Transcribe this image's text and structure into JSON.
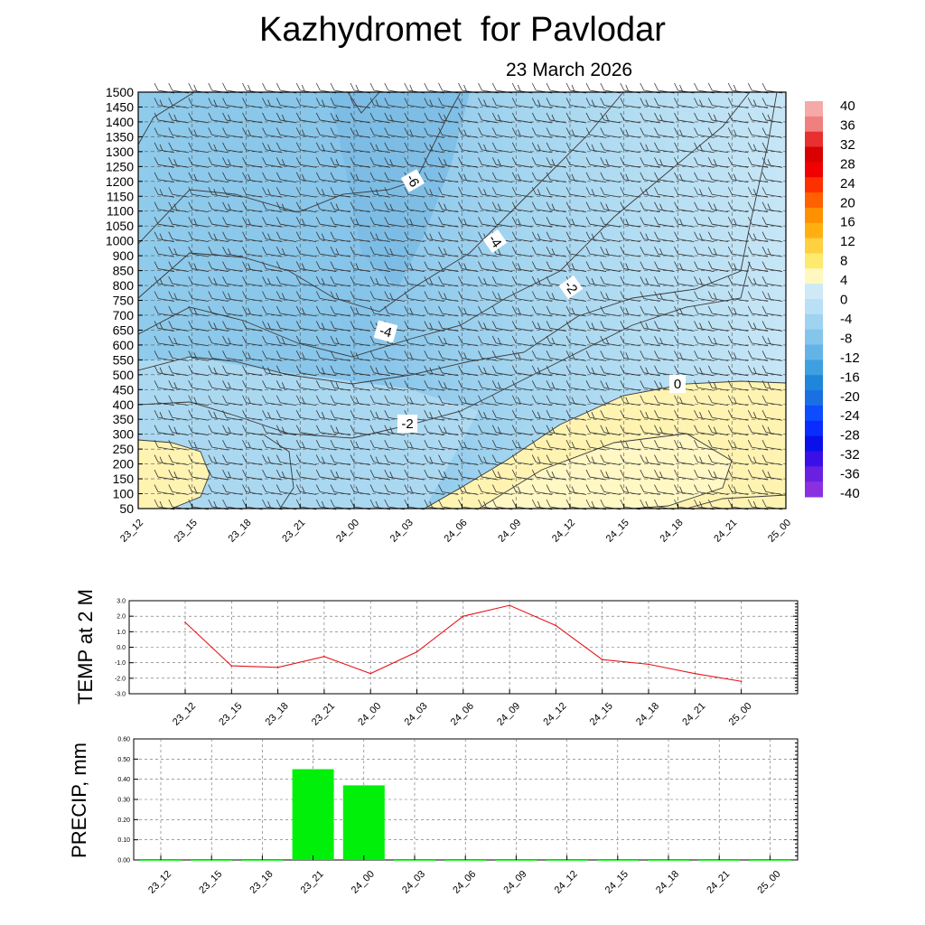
{
  "header": {
    "title": "Kazhydromet  for Pavlodar",
    "date": "23 March 2026"
  },
  "time_labels": [
    "23_12",
    "23_15",
    "23_18",
    "23_21",
    "24_00",
    "24_03",
    "24_06",
    "24_09",
    "24_12",
    "24_15",
    "24_18",
    "24_21",
    "25_00"
  ],
  "chart_data": [
    {
      "type": "heatmap",
      "title": "Kazhydromet  for Pavlodar",
      "subtitle": "23 March 2026",
      "x": [
        "23_12",
        "23_15",
        "23_18",
        "23_21",
        "24_00",
        "24_03",
        "24_06",
        "24_09",
        "24_12",
        "24_15",
        "24_18",
        "24_21",
        "25_00"
      ],
      "y_ticks": [
        50,
        100,
        150,
        200,
        250,
        300,
        350,
        400,
        450,
        500,
        550,
        600,
        650,
        700,
        750,
        800,
        850,
        900,
        1000,
        1050,
        1100,
        1150,
        1200,
        1250,
        1300,
        1350,
        1400,
        1450,
        1500
      ],
      "grid": true,
      "colorbar": {
        "labels": [
          "40",
          "36",
          "32",
          "28",
          "24",
          "20",
          "16",
          "12",
          "8",
          "4",
          "0",
          "-4",
          "-8",
          "-12",
          "-16",
          "-20",
          "-24",
          "-28",
          "-32",
          "-36",
          "-40"
        ],
        "placement": "right"
      },
      "contour_labels": [
        "-6",
        "-4",
        "-2",
        "-4",
        "-2",
        "0"
      ],
      "wind_barbs": true
    },
    {
      "type": "line",
      "ylabel": "TEMP at 2 M",
      "x": [
        "23_12",
        "23_15",
        "23_18",
        "23_21",
        "24_00",
        "24_03",
        "24_06",
        "24_09",
        "24_12",
        "24_15",
        "24_18",
        "24_21",
        "25_00"
      ],
      "values": [
        1.6,
        -1.2,
        -1.3,
        -0.6,
        -1.7,
        -0.3,
        2.0,
        2.7,
        1.4,
        -0.8,
        -1.1,
        -1.7,
        -2.2
      ],
      "ylim": [
        -3.0,
        3.0
      ],
      "y_tick_labels": [
        "3.0",
        "2.0",
        "1.0",
        "0.0",
        "-1.0",
        "-2.0",
        "-3.0"
      ],
      "color": "#e8141b",
      "grid": true
    },
    {
      "type": "bar",
      "ylabel": "PRECIP, mm",
      "categories": [
        "23_12",
        "23_15",
        "23_18",
        "23_21",
        "24_00",
        "24_03",
        "24_06",
        "24_09",
        "24_12",
        "24_15",
        "24_18",
        "24_21",
        "25_00"
      ],
      "values": [
        0,
        0,
        0,
        0.45,
        0.37,
        0,
        0,
        0,
        0,
        0,
        0,
        0,
        0
      ],
      "ylim": [
        0,
        0.6
      ],
      "y_tick_labels": [
        "0.60",
        "0.50",
        "0.40",
        "0.30",
        "0.20",
        "0.10",
        "0.00"
      ],
      "color": "#00f00a",
      "grid": true
    }
  ]
}
